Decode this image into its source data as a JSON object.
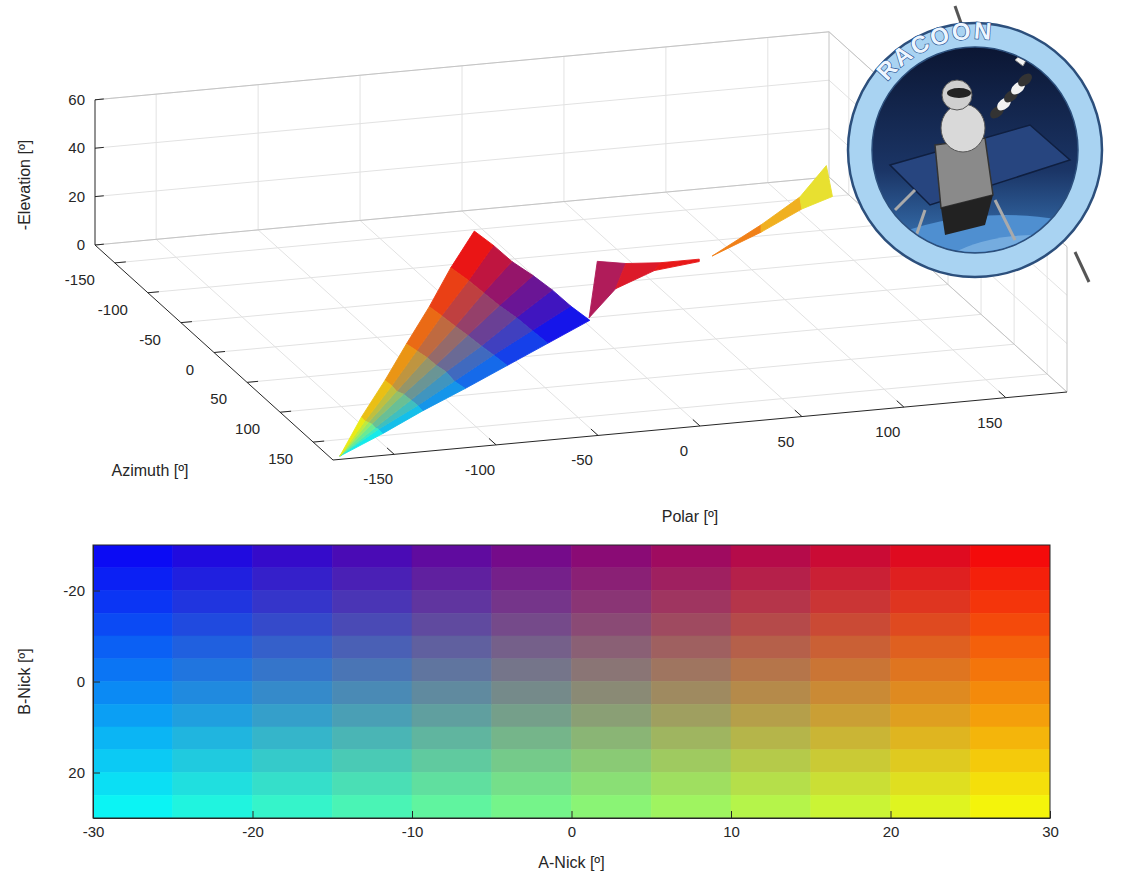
{
  "chart_data": [
    {
      "type": "scatter3d",
      "xlabel": "Polar [º]",
      "ylabel": "Azimuth [º]",
      "zlabel": "-Elevation [º]",
      "xlim": [
        -180,
        180
      ],
      "ylim": [
        -180,
        180
      ],
      "zlim": [
        0,
        60
      ],
      "xticks": [
        -150,
        -100,
        -50,
        0,
        50,
        100,
        150
      ],
      "yticks": [
        -150,
        -100,
        -50,
        0,
        50,
        100,
        150
      ],
      "zticks": [
        0,
        20,
        40,
        60
      ],
      "grid": true,
      "annotations": [
        "RACOON"
      ],
      "surfaces": [
        {
          "x": [
            [
              3,
              -8,
              -19,
              -30,
              -42,
              -53,
              -64
            ],
            [
              -27,
              -36,
              -45,
              -55,
              -64,
              -73,
              -83
            ],
            [
              -56,
              -64,
              -71,
              -79,
              -86,
              -94,
              -101
            ],
            [
              -86,
              -92,
              -97,
              -103,
              -108,
              -114,
              -120
            ],
            [
              -116,
              -119,
              -123,
              -127,
              -131,
              -134,
              -138
            ],
            [
              -145,
              -147,
              -149,
              -151,
              -153,
              -155,
              -157
            ],
            [
              -175,
              -175,
              -175,
              -175,
              -175,
              -175,
              -175
            ]
          ],
          "y": [
            [
              4,
              9,
              15,
              20,
              25,
              31,
              36
            ],
            [
              33,
              37,
              41,
              46,
              50,
              55,
              59
            ],
            [
              61,
              65,
              68,
              72,
              75,
              79,
              82
            ],
            [
              90,
              92,
              95,
              98,
              100,
              103,
              106
            ],
            [
              118,
              120,
              122,
              123,
              125,
              127,
              129
            ],
            [
              147,
              147,
              148,
              149,
              150,
              151,
              152
            ],
            [
              175,
              175,
              175,
              175,
              175,
              175,
              175
            ]
          ],
          "z": [
            [
              0,
              8,
              17,
              25,
              33,
              42,
              50
            ],
            [
              0,
              7,
              14,
              21,
              28,
              35,
              42
            ],
            [
              0,
              6,
              11,
              17,
              22,
              28,
              33
            ],
            [
              0,
              4,
              9,
              13,
              17,
              21,
              25
            ],
            [
              0,
              3,
              6,
              9,
              11,
              14,
              17
            ],
            [
              0,
              2,
              3,
              5,
              6,
              7,
              9
            ],
            [
              0,
              0,
              0,
              0,
              0,
              0,
              0
            ]
          ],
          "colors": [
            [
              "#1515ea",
              "#4015bf",
              "#6a1595",
              "#95156a",
              "#bf1540",
              "#ea1515"
            ],
            [
              "#1540ea",
              "#4040bf",
              "#6a4095",
              "#95406a",
              "#bf4040",
              "#ea4015"
            ],
            [
              "#156aea",
              "#406abf",
              "#6a6a95",
              "#956a6a",
              "#bf6a40",
              "#ea6a15"
            ],
            [
              "#1595ea",
              "#4095bf",
              "#6a9595",
              "#95956a",
              "#bf9540",
              "#ea9515"
            ],
            [
              "#15bfea",
              "#40bfbf",
              "#6abf95",
              "#95bf6a",
              "#bfbf40",
              "#eabf15"
            ],
            [
              "#15eaea",
              "#40eabf",
              "#6aea95",
              "#95ea6a",
              "#bfea40",
              "#eaea15"
            ]
          ]
        },
        {
          "x": [
            [
              8,
              22,
              39,
              58
            ],
            [
              4,
              17,
              36,
              58
            ]
          ],
          "y": [
            [
              0,
              0,
              0,
              0
            ],
            [
              0,
              0,
              0,
              0
            ]
          ],
          "z": [
            [
              23,
              21,
              20,
              20
            ],
            [
              0,
              11,
              17,
              19
            ]
          ],
          "colors": [
            [
              "#b01c5a",
              "#dc1a2a",
              "#e81818"
            ]
          ]
        },
        {
          "x": [
            [
              76,
              100,
              119,
              132
            ],
            [
              76,
              100,
              120,
              135
            ]
          ],
          "y": [
            [
              -36,
              -36,
              -36,
              -36
            ],
            [
              -36,
              -36,
              -36,
              -36
            ]
          ],
          "z": [
            [
              11,
              22,
              32,
              44
            ],
            [
              11,
              19,
              27,
              31
            ]
          ],
          "colors": [
            [
              "#f08018",
              "#f0b020",
              "#e8e030"
            ]
          ]
        }
      ]
    },
    {
      "type": "heatmap",
      "xlabel": "A-Nick [º]",
      "ylabel": "B-Nick [º]",
      "xlim": [
        -30,
        30
      ],
      "ylim": [
        30,
        -30
      ],
      "xticks": [
        -30,
        -20,
        -10,
        0,
        10,
        20,
        30
      ],
      "yticks": [
        -20,
        0,
        20
      ],
      "x_bins": [
        -30,
        -25,
        -20,
        -15,
        -10,
        -5,
        0,
        5,
        10,
        15,
        20,
        25,
        30
      ],
      "y_bins": [
        -30,
        -25,
        -20,
        -15,
        -10,
        -5,
        0,
        5,
        10,
        15,
        20,
        25,
        30
      ],
      "cells": [
        [
          "#0b0bf4",
          "#200bdf",
          "#350bca",
          "#4a0bb5",
          "#600b9f",
          "#750b8a",
          "#8a0b75",
          "#9f0b60",
          "#b50b4a",
          "#ca0b35",
          "#df0b20",
          "#f40b0b"
        ],
        [
          "#0b20f4",
          "#2020df",
          "#3520ca",
          "#4a20b5",
          "#60209f",
          "#75208a",
          "#8a2075",
          "#9f2060",
          "#b5204a",
          "#ca2035",
          "#df2020",
          "#f4200b"
        ],
        [
          "#0b35f4",
          "#2035df",
          "#3535ca",
          "#4a35b5",
          "#60359f",
          "#75358a",
          "#8a3575",
          "#9f3560",
          "#b5354a",
          "#ca3535",
          "#df3520",
          "#f4350b"
        ],
        [
          "#0b4af4",
          "#204adf",
          "#354aca",
          "#4a4ab5",
          "#604a9f",
          "#754a8a",
          "#8a4a75",
          "#9f4a60",
          "#b54a4a",
          "#ca4a35",
          "#df4a20",
          "#f44a0b"
        ],
        [
          "#0b60f4",
          "#2060df",
          "#3560ca",
          "#4a60b5",
          "#60609f",
          "#75608a",
          "#8a6075",
          "#9f6060",
          "#b5604a",
          "#ca6035",
          "#df6020",
          "#f4600b"
        ],
        [
          "#0b75f4",
          "#2075df",
          "#3575ca",
          "#4a75b5",
          "#60759f",
          "#75758a",
          "#8a7575",
          "#9f7560",
          "#b5754a",
          "#ca7535",
          "#df7520",
          "#f4750b"
        ],
        [
          "#0b8af4",
          "#208adf",
          "#358aca",
          "#4a8ab5",
          "#608a9f",
          "#758a8a",
          "#8a8a75",
          "#9f8a60",
          "#b58a4a",
          "#ca8a35",
          "#df8a20",
          "#f48a0b"
        ],
        [
          "#0b9ff4",
          "#209fdf",
          "#359fca",
          "#4a9fb5",
          "#609f9f",
          "#759f8a",
          "#8a9f75",
          "#9f9f60",
          "#b59f4a",
          "#ca9f35",
          "#df9f20",
          "#f49f0b"
        ],
        [
          "#0bb5f4",
          "#20b5df",
          "#35b5ca",
          "#4ab5b5",
          "#60b59f",
          "#75b58a",
          "#8ab575",
          "#9fb560",
          "#b5b54a",
          "#cab535",
          "#dfb520",
          "#f4b50b"
        ],
        [
          "#0bcaf4",
          "#20cadf",
          "#35caca",
          "#4acab5",
          "#60ca9f",
          "#75ca8a",
          "#8aca75",
          "#9fca60",
          "#b5ca4a",
          "#caca35",
          "#dfca20",
          "#f4ca0b"
        ],
        [
          "#0bdff4",
          "#20dfdf",
          "#35dfca",
          "#4adfb5",
          "#60df9f",
          "#75df8a",
          "#8adf75",
          "#9fdf60",
          "#b5df4a",
          "#cadf35",
          "#dfdf20",
          "#f4df0b"
        ],
        [
          "#0bf4f4",
          "#20f4df",
          "#35f4ca",
          "#4af4b5",
          "#60f49f",
          "#75f48a",
          "#8af475",
          "#9ff460",
          "#b5f44a",
          "#caf435",
          "#dff420",
          "#f4f40b"
        ]
      ]
    }
  ]
}
